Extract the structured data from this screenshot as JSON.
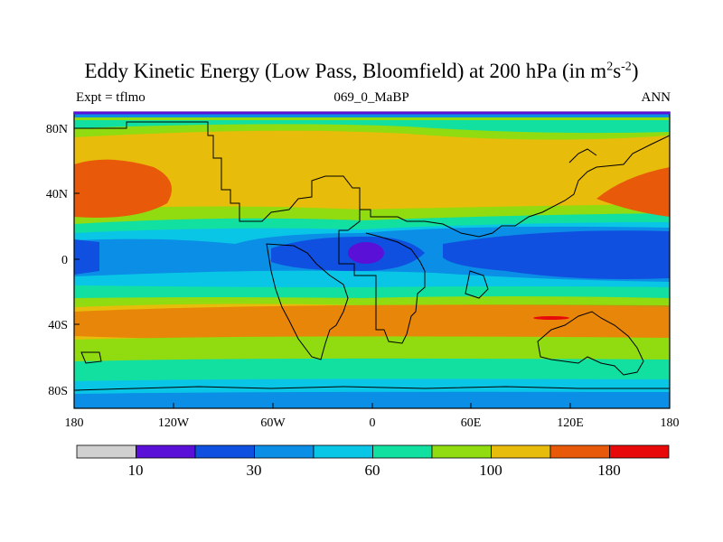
{
  "title": {
    "main": "Eddy Kinetic Energy (Low Pass, Bloomfield) at 200 hPa (in m",
    "sup1": "2",
    "mid": "s",
    "sup2": "-2",
    "end": ")"
  },
  "subtitle": {
    "left": "Expt = tflmo",
    "center": "069_0_MaBP",
    "right": "ANN"
  },
  "map": {
    "lon_ticks": [
      "180",
      "120W",
      "60W",
      "0",
      "60E",
      "120E",
      "180"
    ],
    "lat_ticks": [
      "80N",
      "40N",
      "0",
      "40S",
      "80S"
    ]
  },
  "colorbar": {
    "colors": [
      "#d0d0d0",
      "#5a10d6",
      "#1050e0",
      "#0a8ee6",
      "#0ac6e6",
      "#12e0a0",
      "#90dc10",
      "#e8bc0a",
      "#e85a0a",
      "#e80a0a"
    ],
    "labels": [
      "10",
      "30",
      "60",
      "100",
      "180"
    ]
  },
  "colors": {
    "background_band": "#e8bc0a",
    "coastline": "#000000"
  }
}
